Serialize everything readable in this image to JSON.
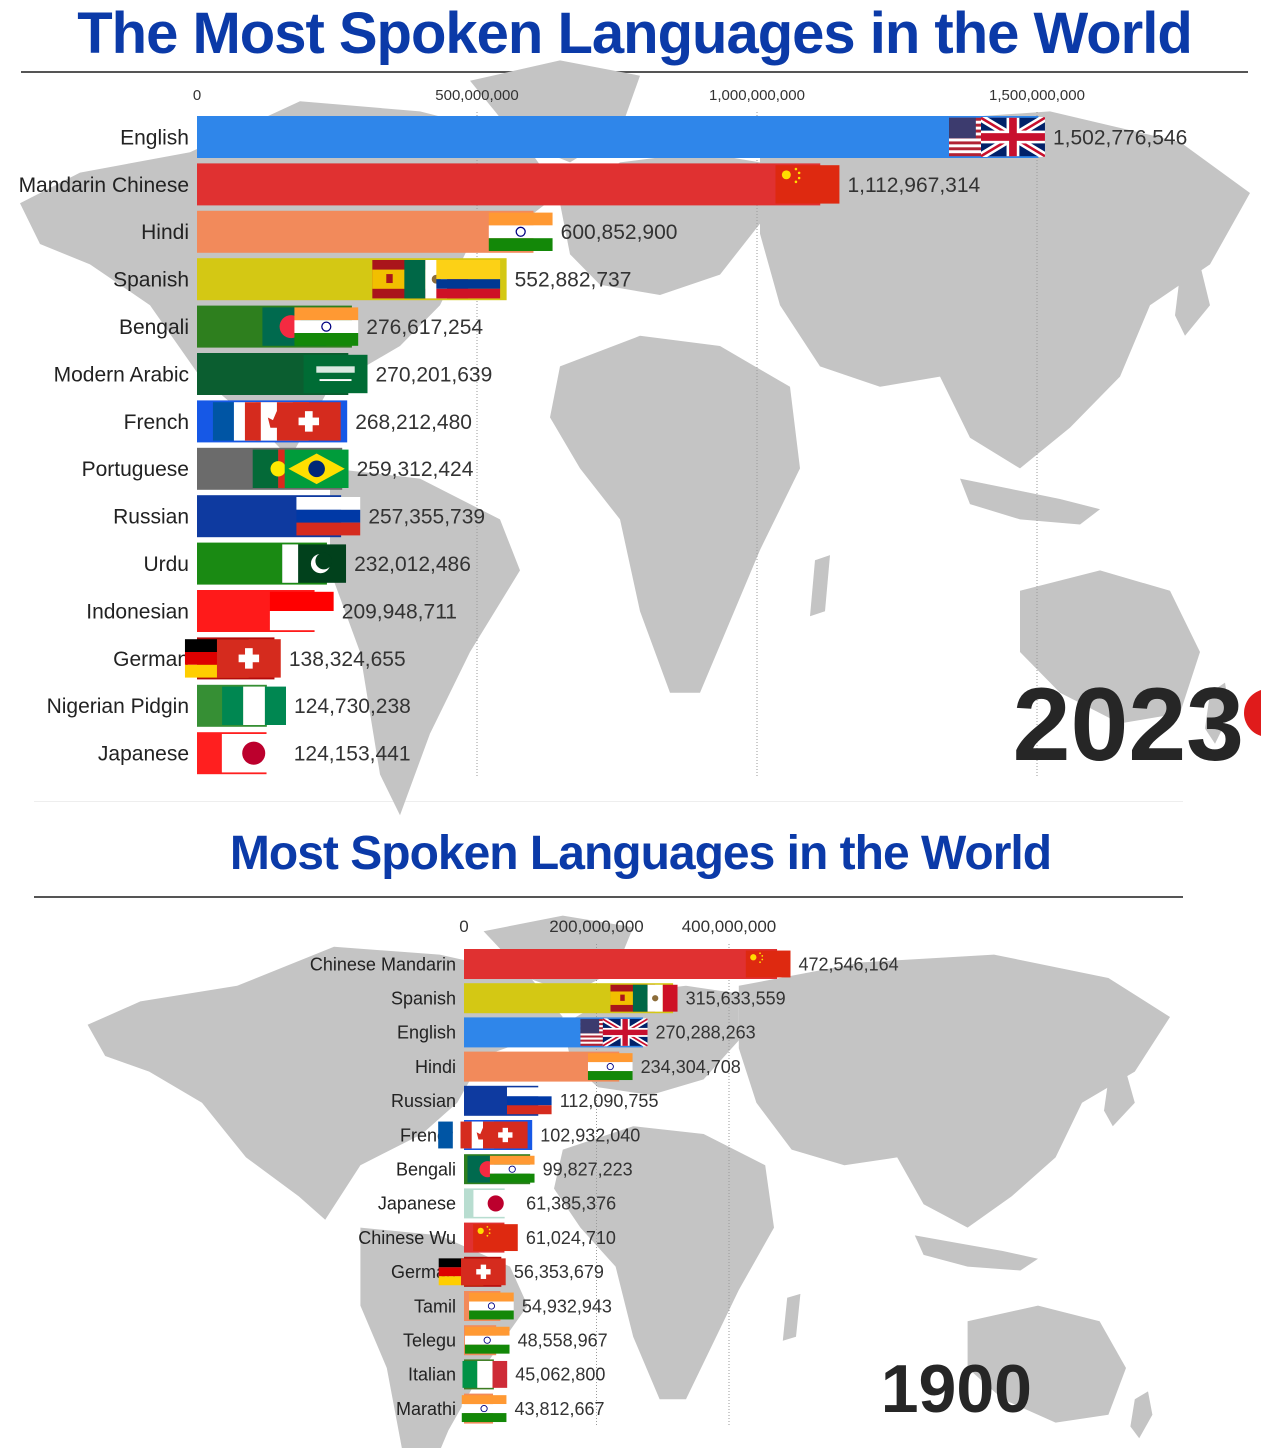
{
  "colors": {
    "title": "#0b3aa8",
    "map": "#c4c4c4",
    "English": "#2f86ea",
    "Mandarin Chinese": "#e03131",
    "Chinese Mandarin": "#e03131",
    "Hindi": "#f28a5b",
    "Spanish": "#d4c814",
    "Bengali": "#2e7f1e",
    "Modern Arabic": "#0b5e30",
    "French": "#1658e6",
    "Portuguese": "#6b6b6b",
    "Russian": "#0e3aa0",
    "Urdu": "#1a8a13",
    "Indonesian": "#ff1a1a",
    "German": "#b30a0a",
    "Nigerian Pidgin": "#368f34",
    "Japanese": "#ff1f1f",
    "Chinese Wu": "#e03131",
    "Tamil": "#f28a5b",
    "Telegu": "#f28a5b",
    "Italian": "#3d7c22",
    "Marathi": "#f28a5b"
  },
  "chart_data": [
    {
      "type": "bar",
      "title": "The Most Spoken Languages in the World",
      "year_label": "2023",
      "orientation": "horizontal",
      "xlim": [
        0,
        1500000000
      ],
      "ticks": [
        0,
        500000000,
        1000000000,
        1500000000
      ],
      "tick_labels": [
        "0",
        "500,000,000",
        "1,000,000,000",
        "1,500,000,000"
      ],
      "categories": [
        "English",
        "Mandarin Chinese",
        "Hindi",
        "Spanish",
        "Bengali",
        "Modern Arabic",
        "French",
        "Portuguese",
        "Russian",
        "Urdu",
        "Indonesian",
        "German",
        "Nigerian Pidgin",
        "Japanese"
      ],
      "values": [
        1502776546,
        1112967314,
        600852900,
        552882737,
        276617254,
        270201639,
        268212480,
        259312424,
        257355739,
        232012486,
        209948711,
        138324655,
        124730238,
        124153441
      ],
      "value_labels": [
        "1,502,776,546",
        "1,112,967,314",
        "600,852,900",
        "552,882,737",
        "276,617,254",
        "270,201,639",
        "268,212,480",
        "259,312,424",
        "257,355,739",
        "232,012,486",
        "209,948,711",
        "138,324,655",
        "124,730,238",
        "124,153,441"
      ],
      "flags": [
        [
          "us",
          "uk"
        ],
        [
          "cn"
        ],
        [
          "in"
        ],
        [
          "es",
          "mx",
          "co"
        ],
        [
          "bd",
          "in"
        ],
        [
          "sa"
        ],
        [
          "fr",
          "ca",
          "ch"
        ],
        [
          "pt",
          "br"
        ],
        [
          "ru"
        ],
        [
          "pk"
        ],
        [
          "id"
        ],
        [
          "de",
          "ch"
        ],
        [
          "ng"
        ],
        [
          "jp"
        ]
      ]
    },
    {
      "type": "bar",
      "title": "Most Spoken Languages in the World",
      "year_label": "1900",
      "orientation": "horizontal",
      "xlim": [
        0,
        400000000
      ],
      "ticks": [
        0,
        200000000,
        400000000
      ],
      "tick_labels": [
        "0",
        "200,000,000",
        "400,000,000"
      ],
      "categories": [
        "Chinese Mandarin",
        "Spanish",
        "English",
        "Hindi",
        "Russian",
        "French",
        "Bengali",
        "Japanese",
        "Chinese Wu",
        "German",
        "Tamil",
        "Telegu",
        "Italian",
        "Marathi"
      ],
      "values": [
        472546164,
        315633559,
        270288263,
        234304708,
        112090755,
        102932040,
        99827223,
        61385376,
        61024710,
        56353679,
        54932943,
        48558967,
        45062800,
        43812667
      ],
      "value_labels": [
        "472,546,164",
        "315,633,559",
        "270,288,263",
        "234,304,708",
        "112,090,755",
        "102,932,040",
        "99,827,223",
        "61,385,376",
        "61,024,710",
        "56,353,679",
        "54,932,943",
        "48,558,967",
        "45,062,800",
        "43,812,667"
      ],
      "bar_colors_override": {
        "Japanese": "#b8ddd0"
      },
      "flags": [
        [
          "cn"
        ],
        [
          "es",
          "mx"
        ],
        [
          "us",
          "uk"
        ],
        [
          "in"
        ],
        [
          "ru"
        ],
        [
          "fr",
          "ca",
          "ch"
        ],
        [
          "bd",
          "in"
        ],
        [
          "jp"
        ],
        [
          "cn"
        ],
        [
          "de",
          "ch"
        ],
        [
          "in"
        ],
        [
          "in"
        ],
        [
          "it"
        ],
        [
          "in"
        ]
      ]
    }
  ]
}
